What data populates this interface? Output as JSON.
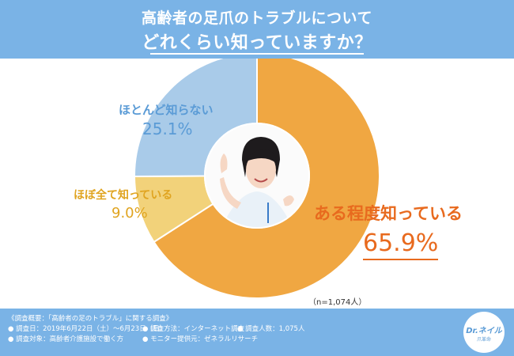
{
  "header": {
    "title_line1": "高齢者の足爪のトラブルについて",
    "title_line2": "どれくらい知っていますか？"
  },
  "chart_data": {
    "type": "pie",
    "title": "高齢者の足爪のトラブルについて どれくらい知っていますか？",
    "note": "（n=1,074人）",
    "slices": [
      {
        "label": "ある程度知っている",
        "value": 65.9,
        "value_text": "65.9%",
        "color": "#f0a742"
      },
      {
        "label": "ほぼ全て知っている",
        "value": 9.0,
        "value_text": "9.0%",
        "color": "#f2d27a"
      },
      {
        "label": "ほとんど知らない",
        "value": 25.1,
        "value_text": "25.1%",
        "color": "#a9cbe9"
      }
    ]
  },
  "footer": {
    "line1": "《調査概要：「高齢者の足のトラブル」に関する調査》",
    "line2a": "● 調査日：2019年6月22日（土）～6月23日（日）",
    "line2b": "● 調査方法：インターネット調査",
    "line2c": "● 調査人数：1,075人",
    "line3a": "● 調査対象：高齢者介護施設で働く方",
    "line3b": "● モニター提供元：ゼネラルリサーチ"
  },
  "logo": {
    "text": "Dr.ネイル",
    "sub": "爪革命"
  },
  "colors": {
    "header_bg": "#7ab3e6",
    "footer_bg": "#7ab3e6"
  }
}
